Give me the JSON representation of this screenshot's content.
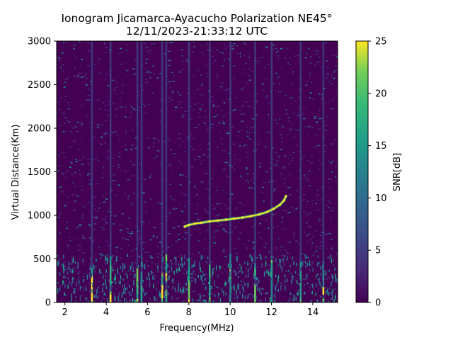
{
  "chart_data": {
    "type": "heatmap",
    "title": "Ionogram Jicamarca-Ayacucho Polarization NE45°",
    "subtitle": "12/11/2023-21:33:12 UTC",
    "xlabel": "Frequency(MHz)",
    "ylabel": "Virtual Distance(Km)",
    "colorbar_label": "SNR[dB]",
    "xlim": [
      1.6,
      15.2
    ],
    "ylim": [
      0,
      3000
    ],
    "clim": [
      0,
      25
    ],
    "colormap": "viridis",
    "x_ticks": [
      2,
      4,
      6,
      8,
      10,
      12,
      14
    ],
    "y_ticks": [
      0,
      500,
      1000,
      1500,
      2000,
      2500,
      3000
    ],
    "colorbar_ticks": [
      0,
      5,
      10,
      15,
      20,
      25
    ],
    "interference_columns_mhz": [
      3.3,
      4.2,
      5.5,
      5.7,
      6.7,
      6.9,
      8.0,
      9.0,
      10.0,
      11.2,
      12.0,
      13.4,
      14.5
    ],
    "trace": {
      "name": "",
      "x": [
        7.8,
        8.0,
        8.3,
        8.6,
        9.0,
        9.4,
        9.8,
        10.2,
        10.6,
        11.0,
        11.4,
        11.8,
        12.1,
        12.4,
        12.6,
        12.7
      ],
      "y": [
        870,
        890,
        905,
        915,
        930,
        940,
        950,
        962,
        975,
        990,
        1010,
        1040,
        1075,
        1120,
        1170,
        1220
      ]
    }
  }
}
